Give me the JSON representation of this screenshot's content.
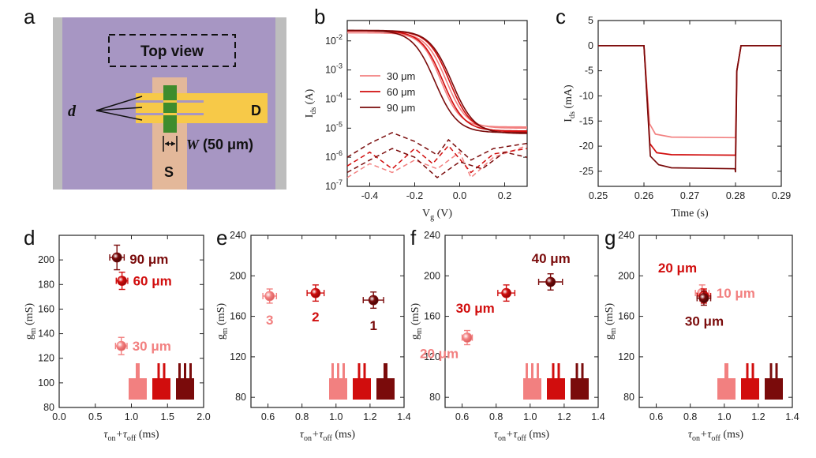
{
  "colors": {
    "light": "#f28080",
    "mid": "#d10d0d",
    "dark": "#7a0b0b",
    "purple": "#a796c3",
    "gray": "#bdbdbd",
    "gold": "#f7c948",
    "tan": "#e3b89a",
    "green": "#3e8c2d"
  },
  "panel_labels": [
    "a",
    "b",
    "c",
    "d",
    "e",
    "f",
    "g"
  ],
  "schematic": {
    "title": "Top view",
    "d_label": "d",
    "drain_label": "D",
    "source_label": "S",
    "w_label": "W",
    "w_value": "(50 μm)"
  },
  "chart_data": [
    {
      "id": "b",
      "type": "line",
      "log_y": true,
      "xlabel": "V",
      "xlabel_sub": "g",
      "xlabel_unit": " (V)",
      "ylabel": "I",
      "ylabel_sub": "ds",
      "ylabel_unit": " (A)",
      "xlim": [
        -0.5,
        0.3
      ],
      "ylim": [
        1e-07,
        0.05
      ],
      "xticks": [
        -0.4,
        -0.2,
        0.0,
        0.2
      ],
      "xtick_labels": [
        "-0.4",
        "-0.2",
        "0.0",
        "0.2"
      ],
      "ytick_exp": [
        -7,
        -6,
        -5,
        -4,
        -3,
        -2
      ],
      "legend": [
        {
          "name": "30 μm",
          "color": "light"
        },
        {
          "name": "60 μm",
          "color": "mid"
        },
        {
          "name": "90 μm",
          "color": "dark"
        }
      ],
      "series": [
        {
          "color": "light",
          "on": 0.019,
          "off": 1.1e-05,
          "v0": -0.085,
          "k": 23
        },
        {
          "color": "light",
          "on": 0.019,
          "off": 1e-05,
          "v0": -0.06,
          "k": 22
        },
        {
          "color": "mid",
          "on": 0.022,
          "off": 8e-06,
          "v0": -0.075,
          "k": 21
        },
        {
          "color": "mid",
          "on": 0.022,
          "off": 7.5e-06,
          "v0": -0.045,
          "k": 21
        },
        {
          "color": "dark",
          "on": 0.023,
          "off": 7e-06,
          "v0": -0.11,
          "k": 20
        },
        {
          "color": "dark",
          "on": 0.023,
          "off": 6.5e-06,
          "v0": -0.035,
          "k": 20
        }
      ],
      "gate_leakage": [
        {
          "color": "light",
          "points": [
            [
              -0.5,
              2e-07
            ],
            [
              -0.4,
              6e-07
            ],
            [
              -0.3,
              3e-07
            ],
            [
              -0.2,
              8e-07
            ],
            [
              -0.1,
              4e-07
            ],
            [
              0.0,
              1.5e-06
            ],
            [
              0.05,
              2e-07
            ],
            [
              0.15,
              1e-06
            ],
            [
              0.3,
              2.5e-06
            ]
          ]
        },
        {
          "color": "mid",
          "points": [
            [
              -0.5,
              5e-07
            ],
            [
              -0.4,
              1.5e-06
            ],
            [
              -0.3,
              4e-07
            ],
            [
              -0.2,
              2e-06
            ],
            [
              -0.12,
              6e-07
            ],
            [
              -0.05,
              2.5e-06
            ],
            [
              0.05,
              3e-07
            ],
            [
              0.15,
              1.3e-06
            ],
            [
              0.3,
              2e-06
            ]
          ]
        },
        {
          "color": "dark",
          "points": [
            [
              -0.5,
              1e-06
            ],
            [
              -0.4,
              3e-06
            ],
            [
              -0.3,
              7e-06
            ],
            [
              -0.2,
              3.5e-06
            ],
            [
              -0.1,
              1.2e-06
            ],
            [
              -0.05,
              4e-06
            ],
            [
              0.05,
              8e-07
            ],
            [
              0.15,
              2e-06
            ],
            [
              0.3,
              3e-06
            ]
          ]
        },
        {
          "color": "dark",
          "points": [
            [
              -0.5,
              3e-07
            ],
            [
              -0.4,
              8e-07
            ],
            [
              -0.3,
              2e-06
            ],
            [
              -0.2,
              1e-06
            ],
            [
              -0.1,
              2e-07
            ],
            [
              0.0,
              7e-07
            ],
            [
              0.1,
              4e-07
            ],
            [
              0.2,
              1.5e-06
            ],
            [
              0.3,
              1e-06
            ]
          ]
        }
      ]
    },
    {
      "id": "c",
      "type": "line",
      "xlabel": "Time (s)",
      "ylabel": "I",
      "ylabel_sub": "ds",
      "ylabel_unit": " (mA)",
      "xlim": [
        0.25,
        0.29
      ],
      "ylim": [
        -28,
        5
      ],
      "xticks": [
        0.25,
        0.26,
        0.27,
        0.28,
        0.29
      ],
      "xtick_labels": [
        "0.25",
        "0.26",
        "0.27",
        "0.28",
        "0.29"
      ],
      "yticks": [
        5,
        0,
        -5,
        -10,
        -15,
        -20,
        -25
      ],
      "ytick_labels": [
        "5",
        "0",
        "-5",
        "-10",
        "-15",
        "-20",
        "-25"
      ],
      "series": [
        {
          "color": "light",
          "points": [
            [
              0.25,
              0
            ],
            [
              0.26,
              0
            ],
            [
              0.2612,
              -15.5
            ],
            [
              0.2625,
              -17.6
            ],
            [
              0.266,
              -18.2
            ],
            [
              0.28,
              -18.3
            ],
            [
              0.2803,
              -5
            ],
            [
              0.2812,
              0
            ],
            [
              0.29,
              0
            ]
          ]
        },
        {
          "color": "mid",
          "points": [
            [
              0.25,
              0
            ],
            [
              0.26,
              0
            ],
            [
              0.2613,
              -19.5
            ],
            [
              0.2628,
              -21.3
            ],
            [
              0.266,
              -21.7
            ],
            [
              0.28,
              -21.8
            ],
            [
              0.2803,
              -5
            ],
            [
              0.2812,
              0
            ],
            [
              0.29,
              0
            ]
          ]
        },
        {
          "color": "dark",
          "points": [
            [
              0.25,
              0
            ],
            [
              0.26,
              0
            ],
            [
              0.2614,
              -22
            ],
            [
              0.2632,
              -23.7
            ],
            [
              0.266,
              -24.3
            ],
            [
              0.2799,
              -24.5
            ],
            [
              0.28,
              -25.2
            ],
            [
              0.2803,
              -5
            ],
            [
              0.2812,
              0
            ],
            [
              0.29,
              0
            ]
          ]
        }
      ]
    },
    {
      "id": "d",
      "type": "scatter",
      "xlabel_parts": [
        "τ",
        "on",
        "+τ",
        "off",
        " (ms)"
      ],
      "ylabel": "g",
      "ylabel_sub": "m",
      "ylabel_unit": " (mS)",
      "xlim": [
        0.0,
        2.0
      ],
      "ylim": [
        80,
        220
      ],
      "xticks": [
        0.0,
        0.5,
        1.0,
        1.5,
        2.0
      ],
      "xtick_labels": [
        "0.0",
        "0.5",
        "1.0",
        "1.5",
        "2.0"
      ],
      "yticks": [
        80,
        100,
        120,
        140,
        160,
        180,
        200
      ],
      "ytick_labels": [
        "80",
        "100",
        "120",
        "140",
        "160",
        "180",
        "200"
      ],
      "points": [
        {
          "x": 0.86,
          "y": 130,
          "xerr": 0.08,
          "yerr": 7,
          "color": "light",
          "label": "30 μm"
        },
        {
          "x": 0.87,
          "y": 183,
          "xerr": 0.08,
          "yerr": 7,
          "color": "mid",
          "label": "60 μm"
        },
        {
          "x": 0.8,
          "y": 202,
          "xerr": 0.1,
          "yerr": 10,
          "color": "dark",
          "label": "90 μm"
        }
      ],
      "icons": [
        {
          "color": "light",
          "fingers": 1
        },
        {
          "color": "mid",
          "fingers": 2
        },
        {
          "color": "dark",
          "fingers": 3
        }
      ]
    },
    {
      "id": "e",
      "type": "scatter",
      "xlabel_parts": [
        "τ",
        "on",
        "+τ",
        "off",
        " (ms)"
      ],
      "ylabel": "g",
      "ylabel_sub": "m",
      "ylabel_unit": " (mS)",
      "xlim": [
        0.5,
        1.4
      ],
      "ylim": [
        70,
        240
      ],
      "xticks": [
        0.6,
        0.8,
        1.0,
        1.2,
        1.4
      ],
      "xtick_labels": [
        "0.6",
        "0.8",
        "1.0",
        "1.2",
        "1.4"
      ],
      "yticks": [
        80,
        120,
        160,
        200,
        240
      ],
      "ytick_labels": [
        "80",
        "120",
        "160",
        "200",
        "240"
      ],
      "points": [
        {
          "x": 0.61,
          "y": 180,
          "xerr": 0.04,
          "yerr": 7,
          "color": "light",
          "label": "3"
        },
        {
          "x": 0.88,
          "y": 183,
          "xerr": 0.05,
          "yerr": 8,
          "color": "mid",
          "label": "2"
        },
        {
          "x": 1.22,
          "y": 176,
          "xerr": 0.06,
          "yerr": 8,
          "color": "dark",
          "label": "1"
        }
      ],
      "icons": [
        {
          "color": "light",
          "fingers": 3
        },
        {
          "color": "mid",
          "fingers": 2
        },
        {
          "color": "dark",
          "fingers": 1
        }
      ]
    },
    {
      "id": "f",
      "type": "scatter",
      "xlabel_parts": [
        "τ",
        "on",
        "+τ",
        "off",
        " (ms)"
      ],
      "ylabel": "g",
      "ylabel_sub": "m",
      "ylabel_unit": " (mS)",
      "xlim": [
        0.5,
        1.4
      ],
      "ylim": [
        70,
        240
      ],
      "xticks": [
        0.6,
        0.8,
        1.0,
        1.2,
        1.4
      ],
      "xtick_labels": [
        "0.6",
        "0.8",
        "1.0",
        "1.2",
        "1.4"
      ],
      "yticks": [
        80,
        120,
        160,
        200,
        240
      ],
      "ytick_labels": [
        "80",
        "120",
        "160",
        "200",
        "240"
      ],
      "points": [
        {
          "x": 0.63,
          "y": 139,
          "xerr": 0.03,
          "yerr": 7,
          "color": "light",
          "label": "20 μm"
        },
        {
          "x": 0.86,
          "y": 183,
          "xerr": 0.05,
          "yerr": 8,
          "color": "mid",
          "label": "30 μm"
        },
        {
          "x": 1.12,
          "y": 194,
          "xerr": 0.07,
          "yerr": 8,
          "color": "dark",
          "label": "40 μm"
        }
      ],
      "icons": [
        {
          "color": "light",
          "fingers": 3
        },
        {
          "color": "mid",
          "fingers": 2
        },
        {
          "color": "dark",
          "fingers": 2
        }
      ]
    },
    {
      "id": "g",
      "type": "scatter",
      "xlabel_parts": [
        "τ",
        "on",
        "+τ",
        "off",
        " (ms)"
      ],
      "ylabel": "g",
      "ylabel_sub": "m",
      "ylabel_unit": " (mS)",
      "xlim": [
        0.5,
        1.4
      ],
      "ylim": [
        70,
        240
      ],
      "xticks": [
        0.6,
        0.8,
        1.0,
        1.2,
        1.4
      ],
      "xtick_labels": [
        "0.6",
        "0.8",
        "1.0",
        "1.2",
        "1.4"
      ],
      "yticks": [
        80,
        120,
        160,
        200,
        240
      ],
      "ytick_labels": [
        "80",
        "120",
        "160",
        "200",
        "240"
      ],
      "points": [
        {
          "x": 0.87,
          "y": 183,
          "xerr": 0.04,
          "yerr": 8,
          "color": "light",
          "label": "10 μm"
        },
        {
          "x": 0.88,
          "y": 180,
          "xerr": 0.04,
          "yerr": 7,
          "color": "mid",
          "label": "20 μm"
        },
        {
          "x": 0.88,
          "y": 178,
          "xerr": 0.04,
          "yerr": 7,
          "color": "dark",
          "label": "30 μm"
        }
      ],
      "icons": [
        {
          "color": "light",
          "fingers": 1
        },
        {
          "color": "mid",
          "fingers": 2
        },
        {
          "color": "dark",
          "fingers": 2
        }
      ]
    }
  ]
}
